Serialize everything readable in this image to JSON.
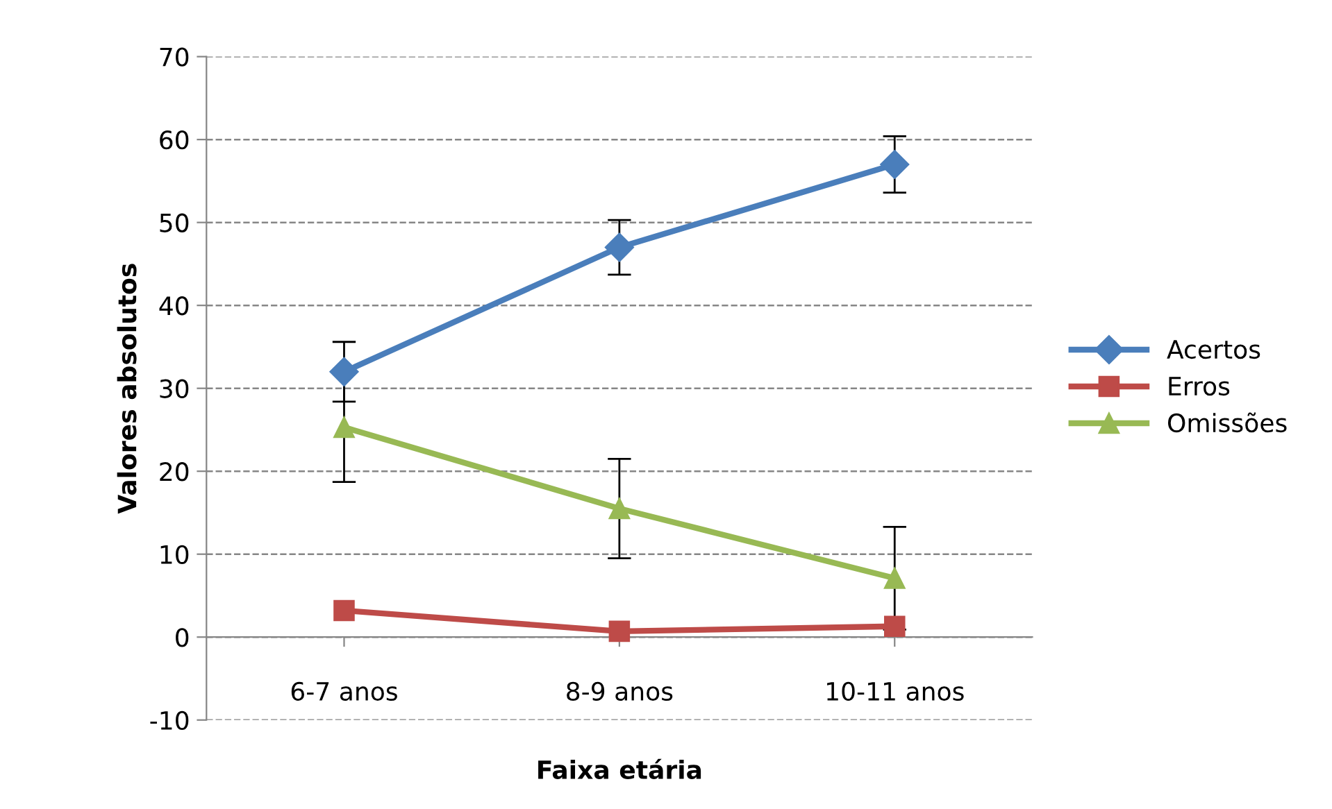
{
  "chart_data": {
    "type": "line",
    "xlabel": "Faixa etária",
    "ylabel": "Valores absolutos",
    "categories": [
      "6-7 anos",
      "8-9 anos",
      "10-11 anos"
    ],
    "series": [
      {
        "name": "Acertos",
        "color": "#4a7ebb",
        "marker": "diamond",
        "values": [
          32,
          47,
          57
        ],
        "errors": [
          3.6,
          3.3,
          3.4
        ]
      },
      {
        "name": "Erros",
        "color": "#be4b48",
        "marker": "square",
        "values": [
          3.2,
          0.7,
          1.3
        ]
      },
      {
        "name": "Omissões",
        "color": "#98b954",
        "marker": "triangle",
        "values": [
          25.3,
          15.5,
          7.1
        ],
        "errors": [
          6.6,
          6,
          6.2
        ]
      }
    ],
    "ylim": [
      -10,
      70
    ],
    "yticks": [
      -10,
      0,
      10,
      20,
      30,
      40,
      50,
      60,
      70
    ],
    "grid": "y",
    "legend": "right"
  }
}
